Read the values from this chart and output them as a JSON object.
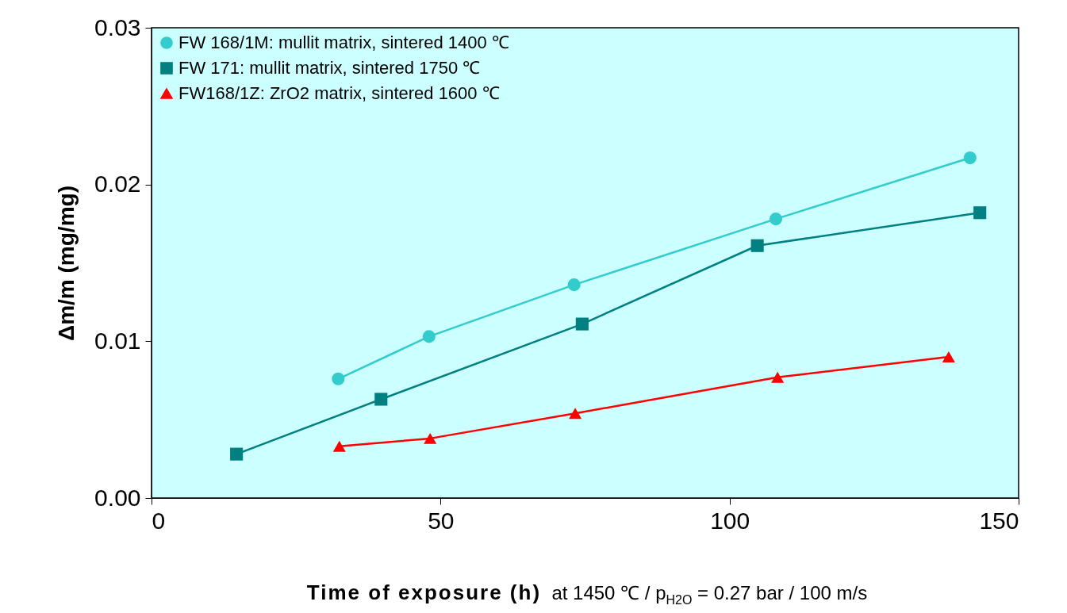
{
  "chart_data": {
    "type": "line",
    "xlabel": "Time of exposure (h)  at 1450 ℃ / p$_{H2O}$ = 0.27 bar / 100 m/s",
    "ylabel": "Δm/m  (mg/mg)",
    "xlim": [
      0,
      150
    ],
    "xticks": [
      0,
      50,
      100,
      150
    ],
    "ylim": [
      0,
      0.03
    ],
    "yticks": [
      {
        "value": 0,
        "label": "0.00"
      },
      0.01,
      0.02,
      0.03
    ],
    "grid": false,
    "legend": "top left",
    "line_style": "solid",
    "series": [
      {
        "name": "FW 168/1M: mullit matrix, sintered 1400 ℃",
        "color": "#33cccc",
        "marker": "circle",
        "x": [
          32.3,
          48.0,
          73.1,
          108.0,
          141.6
        ],
        "values": [
          0.0076,
          0.0103,
          0.0136,
          0.0178,
          0.0217
        ]
      },
      {
        "name": "FW 171:      mullit matrix, sintered 1750 ℃",
        "color": "#008080",
        "marker": "square",
        "x": [
          14.7,
          39.7,
          74.5,
          104.8,
          143.3
        ],
        "values": [
          0.0028,
          0.0063,
          0.0111,
          0.0161,
          0.0182
        ]
      },
      {
        "name": "FW168/1Z:  ZrO2 matrix, sintered 1600 ℃",
        "color": "#ff0000",
        "marker": "triangle",
        "x": [
          32.5,
          48.2,
          73.3,
          108.3,
          137.9
        ],
        "values": [
          0.0033,
          0.0038,
          0.0054,
          0.0077,
          0.009
        ]
      }
    ]
  }
}
